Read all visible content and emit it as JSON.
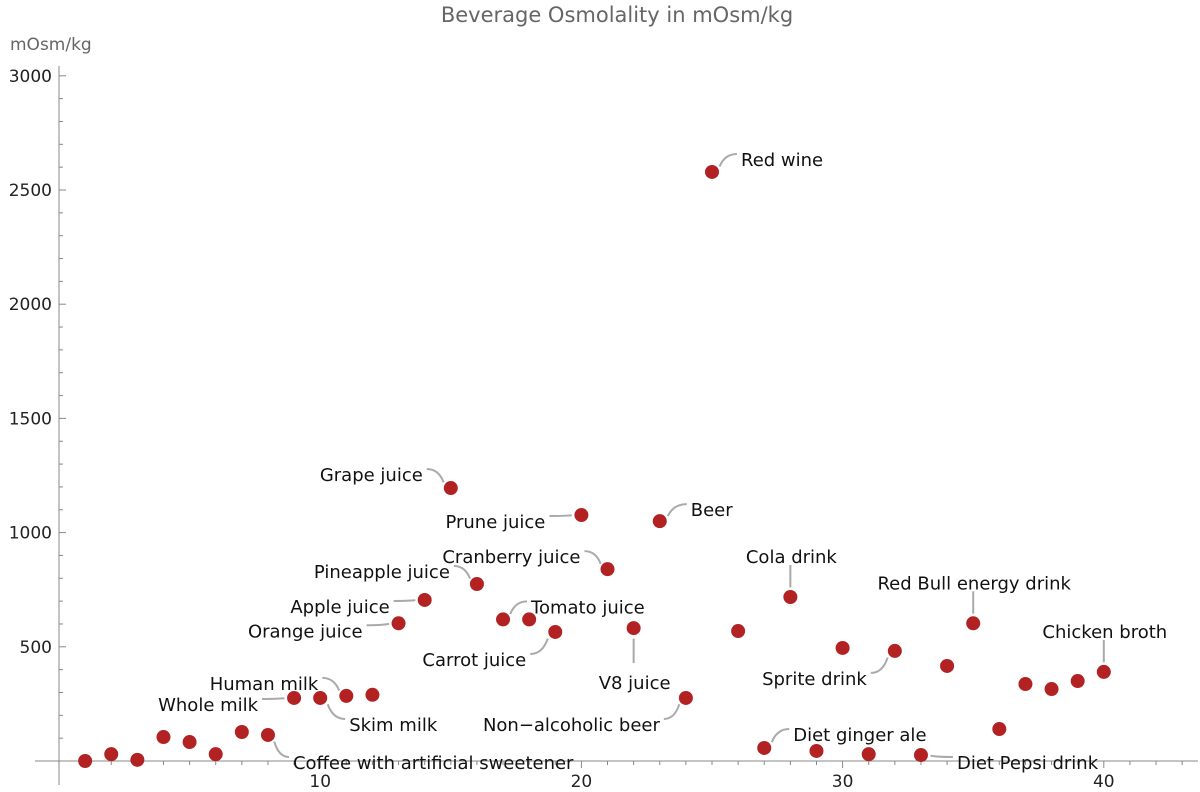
{
  "chart_data": {
    "type": "scatter",
    "title": "Beverage Osmolality in mOsm/kg",
    "ylabel": "mOsm/kg",
    "xlabel": "",
    "xlim": [
      0,
      43.5
    ],
    "ylim": [
      -20,
      3050
    ],
    "x_ticks": [
      10,
      20,
      30,
      40
    ],
    "y_ticks": [
      500,
      1000,
      1500,
      2000,
      2500,
      3000
    ],
    "grid": false,
    "point_color": "#b22222",
    "points": [
      {
        "x": 1,
        "y": 0,
        "label": ""
      },
      {
        "x": 2,
        "y": 30,
        "label": ""
      },
      {
        "x": 3,
        "y": 5,
        "label": ""
      },
      {
        "x": 4,
        "y": 105,
        "label": ""
      },
      {
        "x": 5,
        "y": 83,
        "label": ""
      },
      {
        "x": 6,
        "y": 30,
        "label": ""
      },
      {
        "x": 7,
        "y": 127,
        "label": ""
      },
      {
        "x": 8,
        "y": 114,
        "label": "Coffee with artificial sweetener"
      },
      {
        "x": 9,
        "y": 276,
        "label": "Whole milk"
      },
      {
        "x": 10,
        "y": 276,
        "label": "Skim milk"
      },
      {
        "x": 11,
        "y": 285,
        "label": "Human milk"
      },
      {
        "x": 12,
        "y": 290,
        "label": ""
      },
      {
        "x": 13,
        "y": 603,
        "label": "Orange juice"
      },
      {
        "x": 14,
        "y": 705,
        "label": "Apple juice"
      },
      {
        "x": 15,
        "y": 1195,
        "label": "Grape juice"
      },
      {
        "x": 16,
        "y": 775,
        "label": "Pineapple juice"
      },
      {
        "x": 17,
        "y": 620,
        "label": "Tomato juice"
      },
      {
        "x": 18,
        "y": 620,
        "label": ""
      },
      {
        "x": 19,
        "y": 565,
        "label": "Carrot juice"
      },
      {
        "x": 20,
        "y": 1077,
        "label": "Prune juice"
      },
      {
        "x": 21,
        "y": 840,
        "label": "Cranberry juice"
      },
      {
        "x": 22,
        "y": 582,
        "label": "V8 juice"
      },
      {
        "x": 23,
        "y": 1050,
        "label": "Beer"
      },
      {
        "x": 24,
        "y": 276,
        "label": "Non−alcoholic beer"
      },
      {
        "x": 25,
        "y": 2579,
        "label": "Red wine"
      },
      {
        "x": 26,
        "y": 569,
        "label": ""
      },
      {
        "x": 27,
        "y": 57,
        "label": "Diet ginger ale"
      },
      {
        "x": 28,
        "y": 718,
        "label": "Cola drink"
      },
      {
        "x": 29,
        "y": 44,
        "label": ""
      },
      {
        "x": 30,
        "y": 495,
        "label": ""
      },
      {
        "x": 31,
        "y": 30,
        "label": ""
      },
      {
        "x": 32,
        "y": 482,
        "label": "Sprite drink"
      },
      {
        "x": 33,
        "y": 26,
        "label": "Diet Pepsi drink"
      },
      {
        "x": 34,
        "y": 416,
        "label": ""
      },
      {
        "x": 35,
        "y": 603,
        "label": "Red Bull energy drink"
      },
      {
        "x": 36,
        "y": 140,
        "label": ""
      },
      {
        "x": 37,
        "y": 337,
        "label": ""
      },
      {
        "x": 38,
        "y": 315,
        "label": ""
      },
      {
        "x": 39,
        "y": 350,
        "label": ""
      },
      {
        "x": 40,
        "y": 390,
        "label": "Chicken broth"
      }
    ]
  }
}
